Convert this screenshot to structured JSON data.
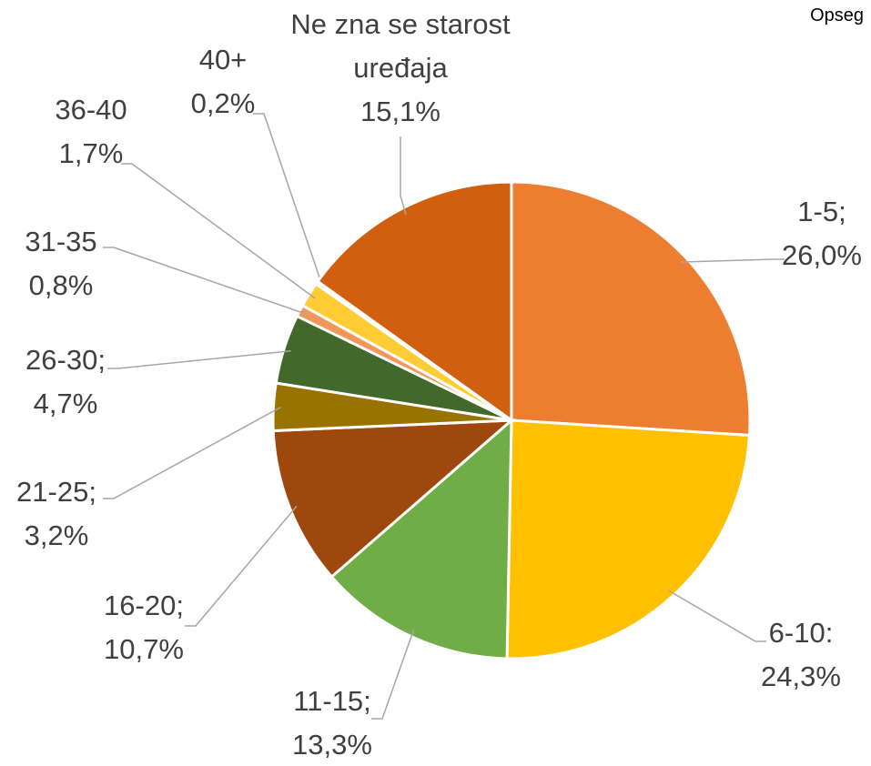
{
  "chart_data": {
    "type": "pie",
    "title": "Opseg",
    "categories": [
      "1-5;",
      "6-10:",
      "11-15;",
      "16-20;",
      "21-25;",
      "26-30;",
      "31-35",
      "36-40",
      "40+",
      "Ne zna se starost uređaja"
    ],
    "values": [
      26.0,
      24.3,
      13.3,
      10.7,
      3.2,
      4.7,
      0.8,
      1.7,
      0.2,
      15.1
    ],
    "value_labels": [
      "26,0%",
      "24,3%",
      "13,3%",
      "10,7%",
      "3,2%",
      "4,7%",
      "0,8%",
      "1,7%",
      "0,2%",
      "15,1%"
    ],
    "colors": [
      "#ED7D31",
      "#FFC000",
      "#70AD47",
      "#9E480E",
      "#997300",
      "#43682B",
      "#F1975A",
      "#FFCD33",
      "#FFE699",
      "#D0600F"
    ]
  }
}
